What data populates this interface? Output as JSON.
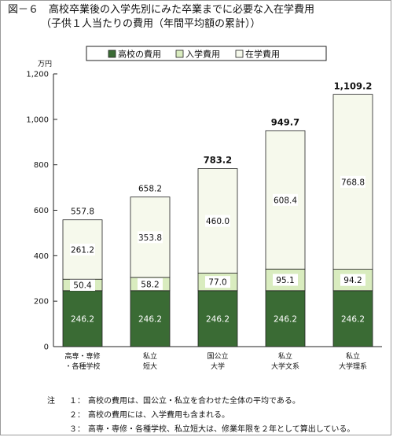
{
  "figure": {
    "title": "図－６　高校卒業後の入学先別にみた卒業までに必要な入在学費用",
    "subtitle": "（子供１人当たりの費用（年間平均額の累計））"
  },
  "chart_data": {
    "type": "bar",
    "stacked": true,
    "categories": [
      [
        "高専・専修",
        "・各種学校"
      ],
      [
        "私立",
        "短大"
      ],
      [
        "国公立",
        "大学"
      ],
      [
        "私立",
        "大学文系"
      ],
      [
        "私立",
        "大学理系"
      ]
    ],
    "series": [
      {
        "name": "高校の費用",
        "values": [
          246.2,
          246.2,
          246.2,
          246.2,
          246.2
        ],
        "labels": [
          "246.2",
          "246.2",
          "246.2",
          "246.2",
          "246.2"
        ],
        "color": "#3a6b34",
        "label_color": "#ffffff"
      },
      {
        "name": "入学費用",
        "values": [
          50.4,
          58.2,
          77.0,
          95.1,
          94.2
        ],
        "labels": [
          "50.4",
          "58.2",
          "77.0",
          "95.1",
          "94.2"
        ],
        "color": "#d9ecbf",
        "label_color": "#111111"
      },
      {
        "name": "在学費用",
        "values": [
          261.2,
          353.8,
          460.0,
          608.4,
          768.8
        ],
        "labels": [
          "261.2",
          "353.8",
          "460.0",
          "608.4",
          "768.8"
        ],
        "color": "#f6f9ec",
        "label_color": "#111111"
      }
    ],
    "totals": [
      557.8,
      658.2,
      783.2,
      949.7,
      1109.2
    ],
    "total_labels": [
      "557.8",
      "658.2",
      "783.2",
      "949.7",
      "1,109.2"
    ],
    "total_bold": [
      false,
      false,
      true,
      true,
      true
    ],
    "y_unit": "万円",
    "ylim": [
      0,
      1200
    ],
    "y_ticks": [
      0,
      200,
      400,
      600,
      800,
      1000,
      1200
    ],
    "y_tick_labels": [
      "0",
      "200",
      "400",
      "600",
      "800",
      "1,000",
      "1,200"
    ],
    "grid": false,
    "legend_position": "top-center"
  },
  "notes": [
    {
      "prefix": "注",
      "num": "１：",
      "text": "高校の費用は、国公立・私立を合わせた全体の平均である。"
    },
    {
      "prefix": "",
      "num": "２：",
      "text": "高校の費用には、入学費用も含まれる。"
    },
    {
      "prefix": "",
      "num": "３：",
      "text": "高専・専修・各種学校、私立短大は、修業年限を２年として算出している。"
    }
  ]
}
